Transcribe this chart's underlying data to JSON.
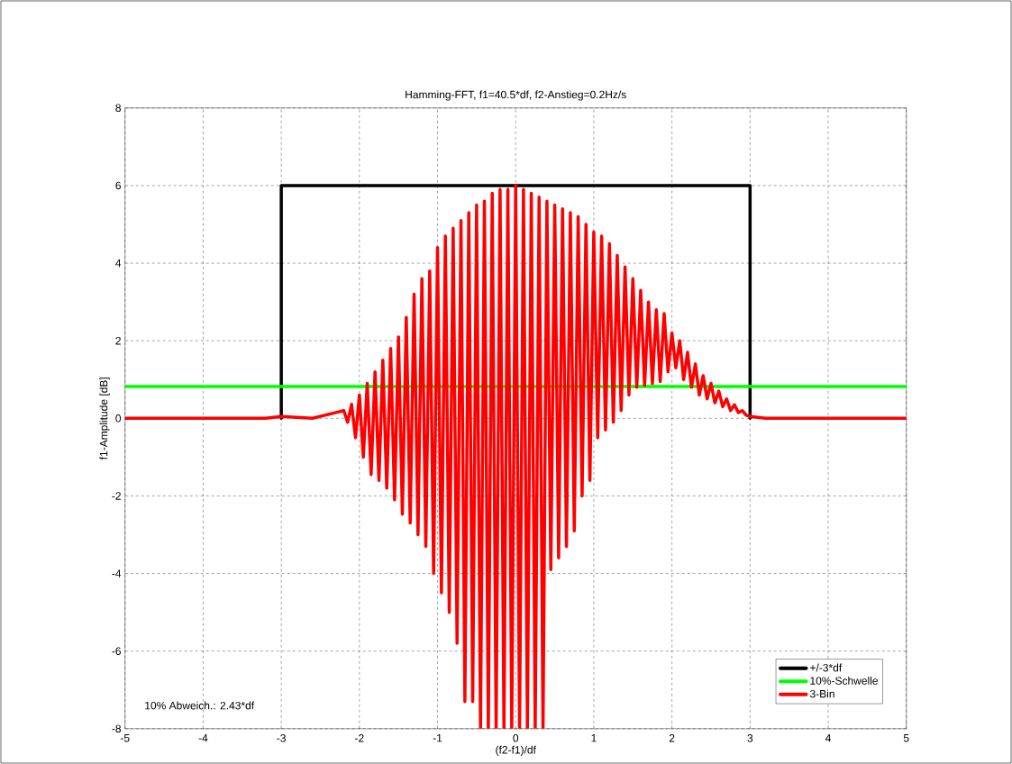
{
  "chart_data": {
    "type": "line",
    "title": "Hamming-FFT,  f1=40.5*df,  f2-Anstieg=0.2Hz/s",
    "xlabel": "(f2-f1)/df",
    "ylabel": "f1-Amplitude [dB]",
    "annotations": [
      "10% Abweich.:  2.43*df"
    ],
    "xlim": [
      -5,
      5
    ],
    "ylim": [
      -8,
      8
    ],
    "xticks": [
      -5,
      -4,
      -3,
      -2,
      -1,
      0,
      1,
      2,
      3,
      4,
      5
    ],
    "yticks": [
      -8,
      -6,
      -4,
      -2,
      0,
      2,
      4,
      6,
      8
    ],
    "grid": true,
    "legend": "bottom right",
    "marker": "none",
    "line_style": "solid",
    "series": [
      {
        "name": "+/-3*df",
        "color": "#000000",
        "x": [
          -3,
          -3,
          3,
          3
        ],
        "values": [
          0,
          6,
          6,
          0
        ]
      },
      {
        "name": "10%-Schwelle",
        "color": "#00ff00",
        "x": [
          -5,
          5
        ],
        "values": [
          0.82,
          0.82
        ]
      },
      {
        "name": "3-Bin",
        "color": "#ff0000",
        "x": [
          -5,
          -3.2,
          -3.0,
          -2.6,
          -2.3,
          -2.2,
          -2.15,
          -2.1,
          -2.05,
          -2.0,
          -1.95,
          -1.9,
          -1.85,
          -1.8,
          -1.75,
          -1.7,
          -1.65,
          -1.6,
          -1.55,
          -1.5,
          -1.45,
          -1.4,
          -1.35,
          -1.3,
          -1.25,
          -1.2,
          -1.15,
          -1.1,
          -1.05,
          -1.0,
          -0.95,
          -0.9,
          -0.85,
          -0.8,
          -0.75,
          -0.7,
          -0.65,
          -0.6,
          -0.55,
          -0.5,
          -0.45,
          -0.4,
          -0.35,
          -0.3,
          -0.25,
          -0.2,
          -0.15,
          -0.1,
          -0.05,
          0.0,
          0.05,
          0.1,
          0.15,
          0.2,
          0.25,
          0.3,
          0.35,
          0.4,
          0.45,
          0.5,
          0.55,
          0.6,
          0.65,
          0.7,
          0.75,
          0.8,
          0.85,
          0.9,
          0.95,
          1.0,
          1.05,
          1.1,
          1.15,
          1.2,
          1.25,
          1.3,
          1.35,
          1.4,
          1.45,
          1.5,
          1.55,
          1.6,
          1.65,
          1.7,
          1.75,
          1.8,
          1.85,
          1.9,
          1.95,
          2.0,
          2.05,
          2.1,
          2.15,
          2.2,
          2.25,
          2.3,
          2.35,
          2.4,
          2.45,
          2.5,
          2.55,
          2.6,
          2.65,
          2.7,
          2.75,
          2.8,
          2.85,
          2.9,
          2.95,
          3.0,
          3.2,
          5
        ],
        "values": [
          0,
          0,
          0.05,
          0.0,
          0.15,
          0.2,
          -0.1,
          0.36,
          -0.5,
          0.6,
          -1.0,
          0.9,
          -1.45,
          1.2,
          -1.6,
          1.5,
          -1.8,
          1.8,
          -2.1,
          2.1,
          -2.47,
          2.6,
          -2.7,
          3.2,
          -3.0,
          3.6,
          -3.3,
          3.8,
          -4.0,
          4.4,
          -4.5,
          4.7,
          -5.0,
          4.9,
          -5.8,
          5.1,
          -7.3,
          5.3,
          -7.3,
          5.5,
          -8,
          5.6,
          -8,
          5.8,
          -8,
          5.9,
          -8,
          5.9,
          -8,
          6.0,
          -8,
          5.9,
          -8,
          5.8,
          -8,
          5.7,
          -8,
          5.6,
          -3.9,
          5.5,
          -3.6,
          5.4,
          -3.3,
          5.3,
          -2.9,
          5.2,
          -2.0,
          5.0,
          -1.6,
          4.8,
          -0.5,
          4.7,
          -0.3,
          4.5,
          -0.1,
          4.2,
          0.2,
          3.9,
          0.6,
          3.6,
          0.8,
          3.3,
          0.85,
          3.0,
          0.9,
          2.8,
          0.95,
          2.7,
          1.2,
          2.2,
          1.3,
          2.0,
          1.0,
          1.7,
          0.8,
          1.4,
          0.6,
          1.1,
          0.5,
          0.9,
          0.4,
          0.7,
          0.3,
          0.5,
          0.2,
          0.35,
          0.15,
          0.2,
          0.08,
          0.05,
          0,
          0
        ]
      }
    ]
  }
}
